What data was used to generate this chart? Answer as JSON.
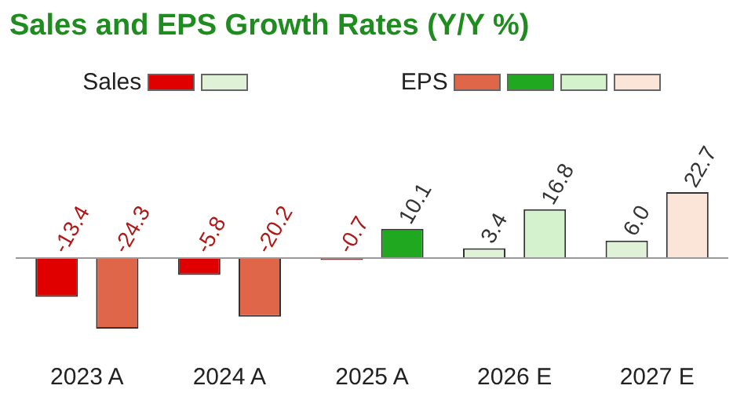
{
  "chart_data": {
    "type": "bar",
    "title": "Sales and EPS Growth Rates (Y/Y %)",
    "categories": [
      "2023 A",
      "2024 A",
      "2025 A",
      "2026 E",
      "2027 E"
    ],
    "series": [
      {
        "name": "Sales",
        "colors": [
          "#e00000",
          "#e00000",
          "#e00000",
          "#dff2d8",
          "#dff2d8"
        ],
        "values": [
          -13.4,
          -5.8,
          -0.7,
          3.4,
          6.0
        ],
        "value_labels": [
          "-13.4",
          "-5.8",
          "-0.7",
          "3.4",
          "6.0"
        ]
      },
      {
        "name": "EPS",
        "colors": [
          "#e0664a",
          "#e0664a",
          "#20a820",
          "#d4f2cc",
          "#fbe4d8"
        ],
        "values": [
          -24.3,
          -20.2,
          10.1,
          16.8,
          22.7
        ],
        "value_labels": [
          "-24.3",
          "-20.2",
          "10.1",
          "16.8",
          "22.7"
        ]
      }
    ],
    "legend": "top",
    "grid": false
  }
}
